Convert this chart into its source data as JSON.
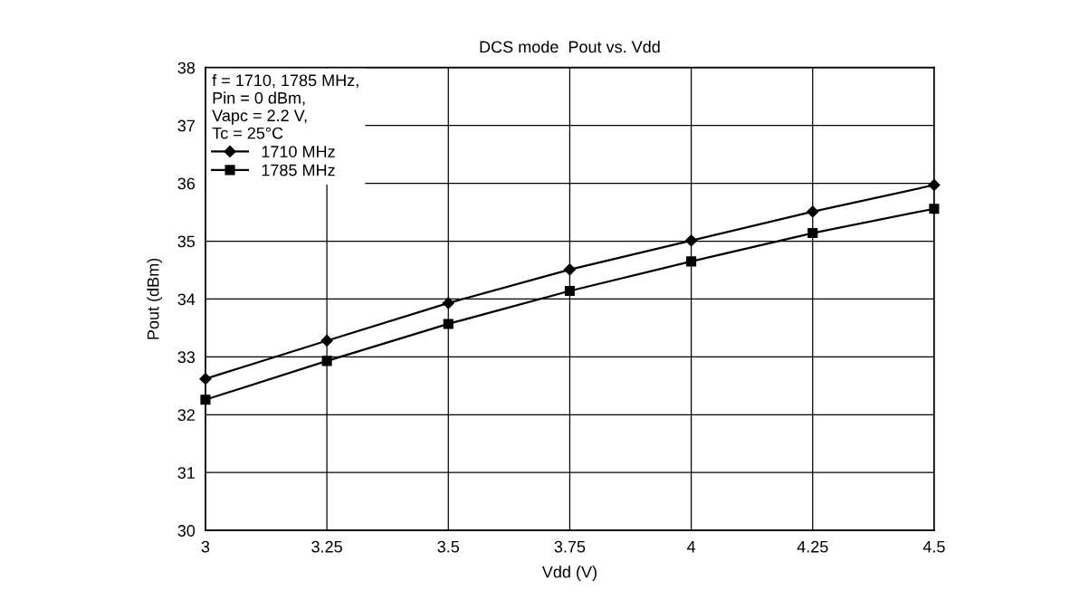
{
  "chart_data": {
    "type": "line",
    "title": "DCS mode  Pout vs. Vdd",
    "xlabel": "Vdd (V)",
    "ylabel": "Pout (dBm)",
    "legend_title": "f = 1710, 1785 MHz,\nPin = 0 dBm,\nVapc = 2.2 V,\nTc = 25°C",
    "x": [
      3,
      3.25,
      3.5,
      3.75,
      4,
      4.25,
      4.5
    ],
    "series": [
      {
        "name": "1710 MHz",
        "color": "#000000",
        "marker": "diamond",
        "values": [
          32.62,
          33.28,
          33.93,
          34.51,
          35.01,
          35.51,
          35.97
        ]
      },
      {
        "name": "1785 MHz",
        "color": "#000000",
        "marker": "square",
        "values": [
          32.26,
          32.93,
          33.57,
          34.14,
          34.65,
          35.14,
          35.56
        ]
      }
    ],
    "xlim": [
      3,
      4.5
    ],
    "xticks": [
      3,
      3.25,
      3.5,
      3.75,
      4,
      4.25,
      4.5
    ],
    "ylim": [
      30,
      38
    ],
    "yticks": [
      30,
      31,
      32,
      33,
      34,
      35,
      36,
      37,
      38
    ],
    "grid": true,
    "legend": "top left",
    "line_style": "solid"
  }
}
